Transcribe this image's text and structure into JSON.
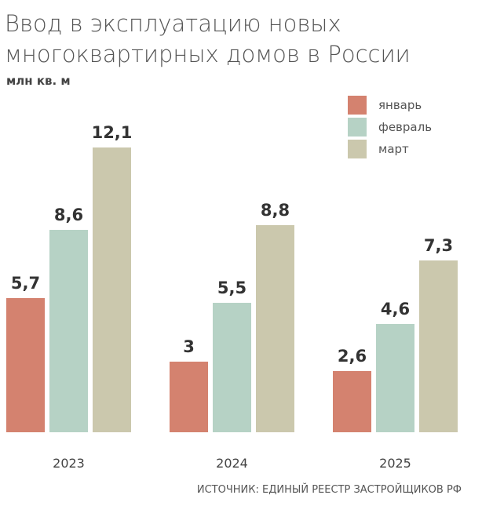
{
  "chart_data": {
    "type": "bar",
    "title": [
      "Ввод в эксплуатацию новых",
      "многоквартирных домов в России"
    ],
    "y_label": "млн кв. м",
    "categories": [
      "2023",
      "2024",
      "2025"
    ],
    "series": [
      {
        "name": "январь",
        "color": "#d4826f",
        "values": [
          5.7,
          3,
          2.6
        ],
        "value_labels": [
          "5,7",
          "3",
          "2,6"
        ]
      },
      {
        "name": "февраль",
        "color": "#b6d2c5",
        "values": [
          8.6,
          5.5,
          4.6
        ],
        "value_labels": [
          "8,6",
          "5,5",
          "4,6"
        ]
      },
      {
        "name": "март",
        "color": "#cbc8ad",
        "values": [
          12.1,
          8.8,
          7.3
        ],
        "value_labels": [
          "12,1",
          "8,8",
          "7,3"
        ]
      }
    ],
    "source": "ИСТОЧНИК: ЕДИНЫЙ РЕЕСТР ЗАСТРОЙЩИКОВ РФ"
  }
}
